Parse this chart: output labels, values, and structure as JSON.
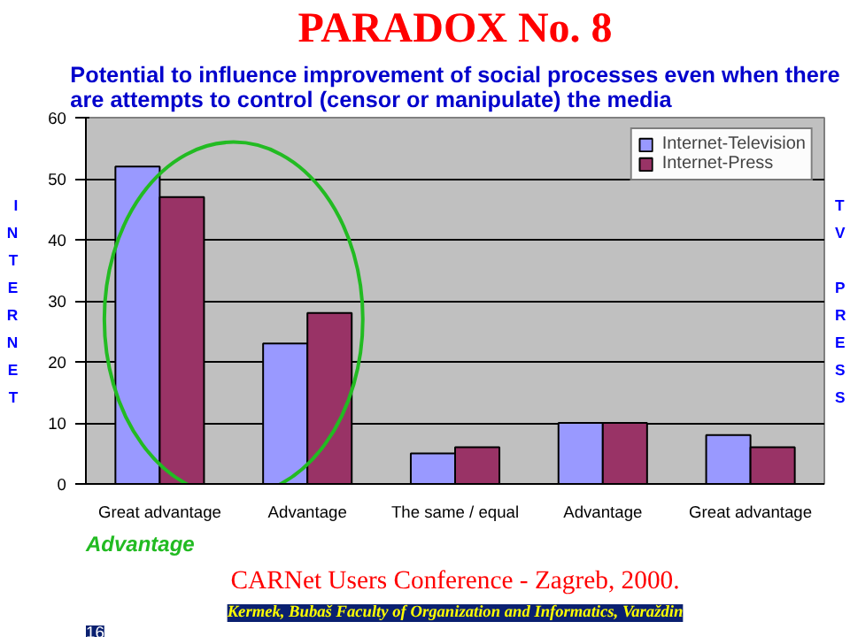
{
  "chart_data": {
    "type": "bar",
    "title": "PARADOX No. 8",
    "subtitle": "Potential to influence improvement of social processes even when there are attempts to control (censor or manipulate) the media",
    "ylabel": "INTERNET",
    "categories": [
      "Great advantage",
      "Advantage",
      "The same / equal",
      "Advantage",
      "Great advantage"
    ],
    "series": [
      {
        "name": "Internet-Television",
        "color": "#9999ff",
        "values": [
          52,
          23,
          5,
          10,
          8
        ]
      },
      {
        "name": "Internet-Press",
        "color": "#993366",
        "values": [
          47,
          28,
          6,
          10,
          6
        ]
      }
    ],
    "ylim": [
      0,
      60
    ],
    "yticks": [
      0,
      10,
      20,
      30,
      40,
      50,
      60
    ],
    "grid": "y",
    "legend": "top right",
    "annotations": [
      "TV PRESS",
      "Advantage",
      "CARNet Users Conference - Zagreb, 2000.",
      "Kermek, Bubaš Faculty of Organization and Informatics, Varaždin",
      "16"
    ]
  }
}
